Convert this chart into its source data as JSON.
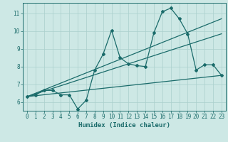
{
  "xlabel": "Humidex (Indice chaleur)",
  "ylabel": "",
  "xlim": [
    -0.5,
    23.5
  ],
  "ylim": [
    5.5,
    11.6
  ],
  "xticks": [
    0,
    1,
    2,
    3,
    4,
    5,
    6,
    7,
    8,
    9,
    10,
    11,
    12,
    13,
    14,
    15,
    16,
    17,
    18,
    19,
    20,
    21,
    22,
    23
  ],
  "yticks": [
    6,
    7,
    8,
    9,
    10,
    11
  ],
  "background_color": "#cde8e5",
  "grid_color": "#aacfcc",
  "line_color": "#1a6b6a",
  "main_curve": {
    "x": [
      0,
      1,
      2,
      3,
      4,
      5,
      6,
      7,
      8,
      9,
      10,
      11,
      12,
      13,
      14,
      15,
      16,
      17,
      18,
      19,
      20,
      21,
      22,
      23
    ],
    "y": [
      6.3,
      6.4,
      6.65,
      6.65,
      6.4,
      6.4,
      5.6,
      6.1,
      7.8,
      8.7,
      10.05,
      8.5,
      8.15,
      8.05,
      8.0,
      9.9,
      11.1,
      11.3,
      10.7,
      9.85,
      7.8,
      8.1,
      8.1,
      7.5
    ]
  },
  "straight_lines": [
    {
      "x": [
        0,
        23
      ],
      "y": [
        6.3,
        7.5
      ]
    },
    {
      "x": [
        0,
        23
      ],
      "y": [
        6.3,
        9.85
      ]
    },
    {
      "x": [
        0,
        23
      ],
      "y": [
        6.3,
        10.7
      ]
    }
  ]
}
